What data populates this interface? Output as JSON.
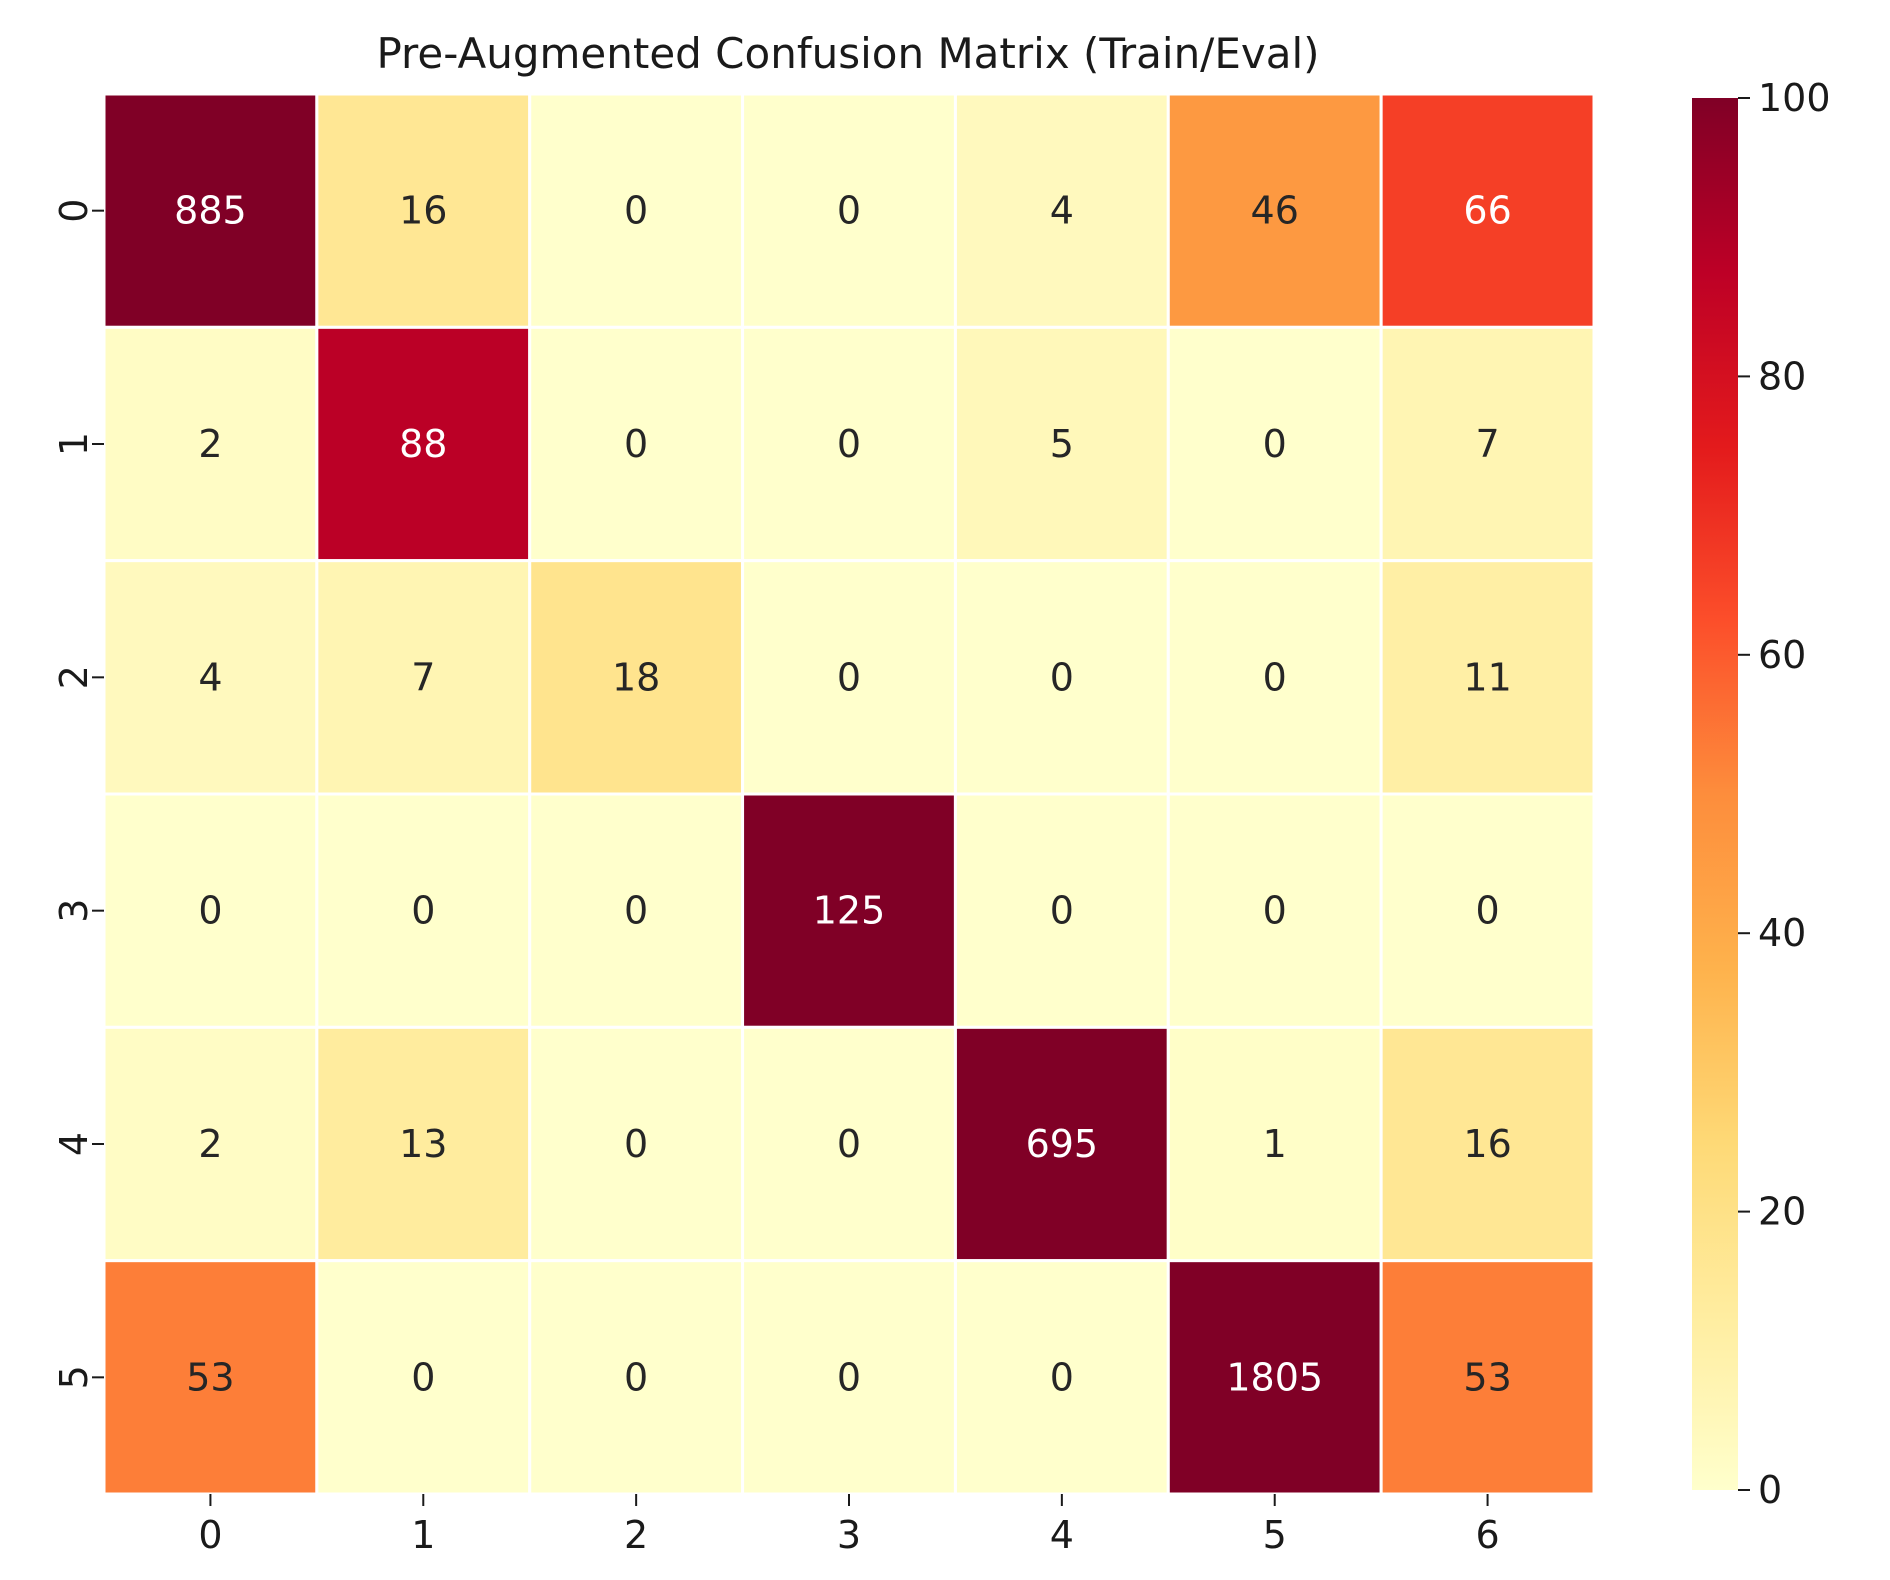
{
  "chart_data": {
    "type": "heatmap",
    "title": "Pre-Augmented Confusion Matrix (Train/Eval)",
    "xlabel": "",
    "ylabel": "",
    "x_categories": [
      "0",
      "1",
      "2",
      "3",
      "4",
      "5",
      "6"
    ],
    "y_categories": [
      "0",
      "1",
      "2",
      "3",
      "4",
      "5"
    ],
    "values": [
      [
        885,
        16,
        0,
        0,
        4,
        46,
        66
      ],
      [
        2,
        88,
        0,
        0,
        5,
        0,
        7
      ],
      [
        4,
        7,
        18,
        0,
        0,
        0,
        11
      ],
      [
        0,
        0,
        0,
        125,
        0,
        0,
        0
      ],
      [
        2,
        13,
        0,
        0,
        695,
        1,
        16
      ],
      [
        53,
        0,
        0,
        0,
        0,
        1805,
        53
      ]
    ],
    "colorscale": "YlOrRd",
    "color_range": [
      0,
      100
    ],
    "colorbar_ticks": [
      "0",
      "20",
      "40",
      "60",
      "80",
      "100"
    ],
    "grid": false,
    "legend": "colorbar-right"
  }
}
